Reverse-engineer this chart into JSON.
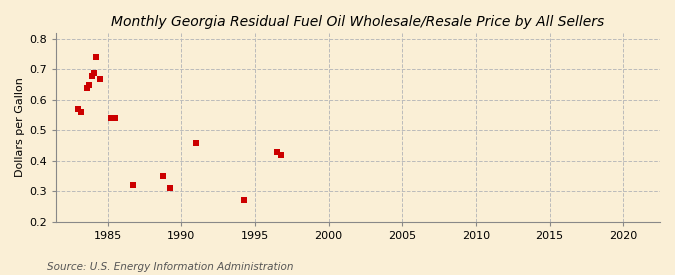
{
  "title": "Monthly Georgia Residual Fuel Oil Wholesale/Resale Price by All Sellers",
  "ylabel": "Dollars per Gallon",
  "source": "Source: U.S. Energy Information Administration",
  "background_color": "#faefd6",
  "scatter_color": "#cc0000",
  "x_data": [
    1983.0,
    1983.17,
    1983.58,
    1983.75,
    1983.92,
    1984.08,
    1984.25,
    1984.5,
    1985.25,
    1985.5,
    1986.75,
    1988.75,
    1989.25,
    1991.0,
    1994.25,
    1996.5,
    1996.75
  ],
  "y_data": [
    0.57,
    0.56,
    0.64,
    0.65,
    0.68,
    0.69,
    0.74,
    0.67,
    0.54,
    0.54,
    0.32,
    0.35,
    0.31,
    0.46,
    0.27,
    0.43,
    0.42
  ],
  "xlim": [
    1981.5,
    2022.5
  ],
  "ylim": [
    0.2,
    0.82
  ],
  "xticks": [
    1985,
    1990,
    1995,
    2000,
    2005,
    2010,
    2015,
    2020
  ],
  "yticks": [
    0.2,
    0.3,
    0.4,
    0.5,
    0.6,
    0.7,
    0.8
  ],
  "marker": "s",
  "marker_size": 16,
  "grid_color": "#bbbbbb",
  "grid_style": "--",
  "title_fontsize": 10,
  "label_fontsize": 8,
  "source_fontsize": 7.5
}
